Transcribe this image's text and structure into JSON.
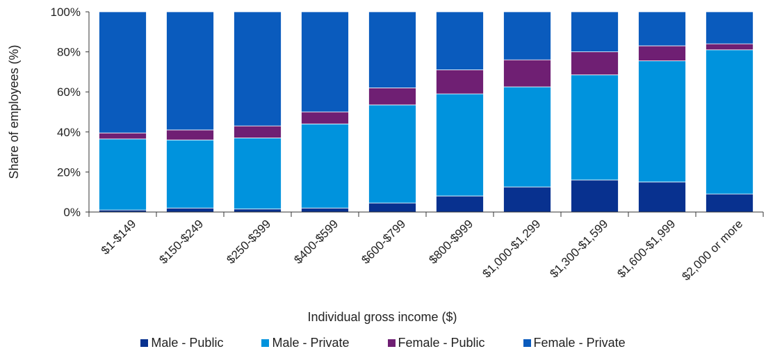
{
  "chart_data": {
    "type": "bar",
    "stacked": true,
    "xlabel": "Individual gross income ($)",
    "ylabel": "Share of employees (%)",
    "ylim": [
      0,
      100
    ],
    "yticks": [
      "0%",
      "20%",
      "40%",
      "60%",
      "80%",
      "100%"
    ],
    "grid": false,
    "legend_position": "bottom",
    "categories": [
      "$1-$149",
      "$150-$249",
      "$250-$399",
      "$400-$599",
      "$600-$799",
      "$800-$999",
      "$1,000-$1,299",
      "$1,300-$1,599",
      "$1,600-$1,999",
      "$2,000 or more"
    ],
    "series": [
      {
        "name": "Male - Public",
        "color": "#08318f",
        "values": [
          1,
          2,
          1.5,
          2,
          4.5,
          8,
          12.5,
          16,
          15,
          9
        ]
      },
      {
        "name": "Male - Private",
        "color": "#0093dd",
        "values": [
          35.5,
          34,
          35.5,
          42,
          49,
          51,
          50,
          52.5,
          60.5,
          72
        ]
      },
      {
        "name": "Female - Public",
        "color": "#6f1f73",
        "values": [
          3,
          5,
          6,
          6,
          8.5,
          12,
          13.5,
          11.5,
          7.5,
          3
        ]
      },
      {
        "name": "Female - Private",
        "color": "#0a5bbd",
        "values": [
          60.5,
          59,
          57,
          50,
          38,
          29,
          24,
          20,
          17,
          16
        ]
      }
    ]
  }
}
